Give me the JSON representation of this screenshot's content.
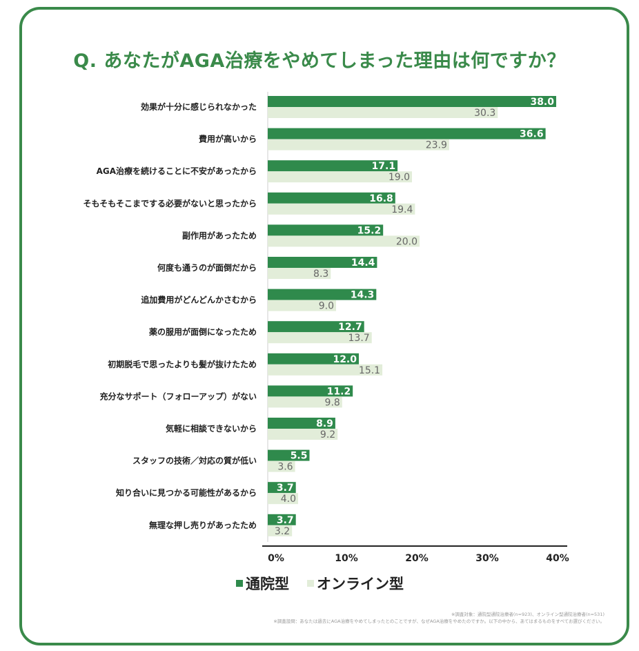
{
  "title": "Q. あなたがAGA治療をやめてしまった理由は何ですか？",
  "chart_data": {
    "type": "bar",
    "orientation": "horizontal",
    "categories": [
      "効果が十分に感じられなかった",
      "費用が高いから",
      "AGA治療を続けることに不安があったから",
      "そもそもそこまでする必要がないと思ったから",
      "副作用があったため",
      "何度も通うのが面倒だから",
      "追加費用がどんどんかさむから",
      "薬の服用が面倒になったため",
      "初期脱毛で思ったよりも髪が抜けたため",
      "充分なサポート（フォローアップ）がない",
      "気軽に相談できないから",
      "スタッフの技術／対応の質が低い",
      "知り合いに見つかる可能性があるから",
      "無理な押し売りがあったため"
    ],
    "series": [
      {
        "name": "通院型",
        "color": "#2f8a4c",
        "values": [
          38.0,
          36.6,
          17.1,
          16.8,
          15.2,
          14.4,
          14.3,
          12.7,
          12.0,
          11.2,
          8.9,
          5.5,
          3.7,
          3.7
        ]
      },
      {
        "name": "オンライン型",
        "color": "#e2edd9",
        "values": [
          30.3,
          23.9,
          19.0,
          19.4,
          20.0,
          8.3,
          9.0,
          13.7,
          15.1,
          9.8,
          9.2,
          3.6,
          4.0,
          3.2
        ]
      }
    ],
    "xlim": [
      0,
      40
    ],
    "xticks": [
      "0%",
      "10%",
      "20%",
      "30%",
      "40%"
    ],
    "legend": "bottom-left",
    "grid": false
  },
  "notes": [
    "※調査対象：通院型通院治療者(n=923)、オンライン型通院治療者(n=531)",
    "※調査設問：あなたは過去にAGA治療をやめてしまったとのことですが、なぜAGA治療をやめたのですか。以下の中から、あてはまるものをすべてお選びください。"
  ]
}
